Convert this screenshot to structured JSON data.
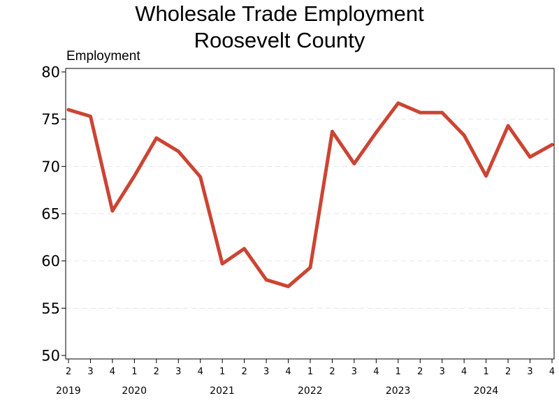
{
  "chart_data": {
    "type": "line",
    "title_lines": [
      "Wholesale Trade Employment",
      "Roosevelt County"
    ],
    "ylabel": "Employment",
    "xlabel": "",
    "ylim": [
      50,
      80
    ],
    "yticks": [
      "50",
      "55",
      "60",
      "65",
      "70",
      "75",
      "80"
    ],
    "grid": "horizontal dashed",
    "line_color": "#cc4433",
    "x": [
      {
        "year": "2019",
        "quarter": "2"
      },
      {
        "year": "2019",
        "quarter": "3"
      },
      {
        "year": "2019",
        "quarter": "4"
      },
      {
        "year": "2020",
        "quarter": "1"
      },
      {
        "year": "2020",
        "quarter": "2"
      },
      {
        "year": "2020",
        "quarter": "3"
      },
      {
        "year": "2020",
        "quarter": "4"
      },
      {
        "year": "2021",
        "quarter": "1"
      },
      {
        "year": "2021",
        "quarter": "2"
      },
      {
        "year": "2021",
        "quarter": "3"
      },
      {
        "year": "2021",
        "quarter": "4"
      },
      {
        "year": "2022",
        "quarter": "1"
      },
      {
        "year": "2022",
        "quarter": "2"
      },
      {
        "year": "2022",
        "quarter": "3"
      },
      {
        "year": "2022",
        "quarter": "4"
      },
      {
        "year": "2023",
        "quarter": "1"
      },
      {
        "year": "2023",
        "quarter": "2"
      },
      {
        "year": "2023",
        "quarter": "3"
      },
      {
        "year": "2023",
        "quarter": "4"
      },
      {
        "year": "2024",
        "quarter": "1"
      },
      {
        "year": "2024",
        "quarter": "2"
      },
      {
        "year": "2024",
        "quarter": "3"
      },
      {
        "year": "2024",
        "quarter": "4"
      }
    ],
    "years": [
      "2019",
      "2020",
      "2021",
      "2022",
      "2023",
      "2024"
    ],
    "series": [
      {
        "values": [
          76.0,
          75.3,
          65.3,
          69.0,
          73.0,
          71.6,
          68.9,
          59.7,
          61.3,
          58.0,
          57.3,
          59.3,
          73.7,
          70.3,
          73.6,
          76.7,
          75.7,
          75.7,
          73.3,
          69.0,
          74.3,
          71.0,
          72.3
        ]
      }
    ]
  }
}
